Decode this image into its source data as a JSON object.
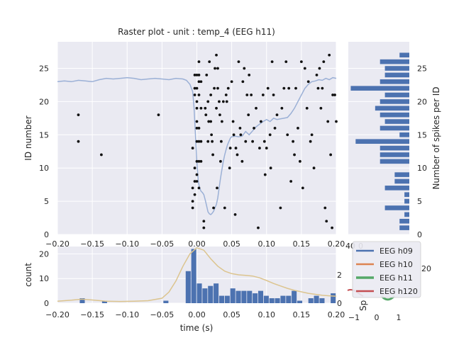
{
  "title": "Raster plot - unit : temp_4 (EEG h11)",
  "colors": {
    "panel_bg": "#eaeaf2",
    "grid": "#ffffff",
    "bar": "#4c72b0",
    "trace": "#9bb0d6",
    "kde": "#dcc48e",
    "dots": "#111111"
  },
  "chart_data": [
    {
      "id": "raster",
      "type": "scatter",
      "title": "Raster plot - unit : temp_4 (EEG h11)",
      "xlabel": "",
      "ylabel": "ID number",
      "xlim": [
        -0.2,
        0.2
      ],
      "ylim": [
        0,
        29
      ],
      "x_ticks": [
        -0.2,
        -0.15,
        -0.1,
        -0.05,
        0.0,
        0.05,
        0.1,
        0.15,
        0.2
      ],
      "x_tick_labels": [
        "−0.20",
        "−0.15",
        "−0.10",
        "−0.05",
        "0.00",
        "0.05",
        "0.10",
        "0.15",
        "0.20"
      ],
      "y_ticks": [
        0,
        5,
        10,
        15,
        20,
        25
      ],
      "grid": true,
      "points": [
        [
          -0.17,
          18
        ],
        [
          -0.17,
          14
        ],
        [
          -0.137,
          12
        ],
        [
          -0.055,
          18
        ],
        [
          -0.006,
          13
        ],
        [
          -0.006,
          7
        ],
        [
          -0.006,
          5
        ],
        [
          -0.006,
          4
        ],
        [
          -0.003,
          24
        ],
        [
          -0.003,
          22
        ],
        [
          -0.003,
          21
        ],
        [
          -0.003,
          10
        ],
        [
          -0.003,
          8
        ],
        [
          -0.003,
          6
        ],
        [
          0.0,
          24
        ],
        [
          0.0,
          22
        ],
        [
          0.0,
          20
        ],
        [
          0.0,
          19
        ],
        [
          0.0,
          17
        ],
        [
          0.0,
          16
        ],
        [
          0.0,
          14
        ],
        [
          0.0,
          11
        ],
        [
          0.0,
          9
        ],
        [
          0.0,
          8
        ],
        [
          0.003,
          26
        ],
        [
          0.003,
          24
        ],
        [
          0.003,
          23
        ],
        [
          0.003,
          21
        ],
        [
          0.003,
          16
        ],
        [
          0.003,
          14
        ],
        [
          0.003,
          11
        ],
        [
          0.003,
          7
        ],
        [
          0.006,
          23
        ],
        [
          0.006,
          19
        ],
        [
          0.006,
          14
        ],
        [
          0.006,
          11
        ],
        [
          0.01,
          2
        ],
        [
          0.01,
          1
        ],
        [
          0.012,
          19
        ],
        [
          0.013,
          18
        ],
        [
          0.014,
          24
        ],
        [
          0.016,
          20
        ],
        [
          0.016,
          14
        ],
        [
          0.017,
          17
        ],
        [
          0.018,
          26
        ],
        [
          0.02,
          21
        ],
        [
          0.02,
          17
        ],
        [
          0.021,
          15
        ],
        [
          0.022,
          14
        ],
        [
          0.023,
          12
        ],
        [
          0.024,
          4
        ],
        [
          0.025,
          22
        ],
        [
          0.026,
          25
        ],
        [
          0.028,
          27
        ],
        [
          0.028,
          19
        ],
        [
          0.029,
          7
        ],
        [
          0.03,
          25
        ],
        [
          0.03,
          22
        ],
        [
          0.032,
          20
        ],
        [
          0.033,
          18
        ],
        [
          0.034,
          11
        ],
        [
          0.035,
          14
        ],
        [
          0.036,
          17
        ],
        [
          0.038,
          20
        ],
        [
          0.04,
          4
        ],
        [
          0.042,
          21
        ],
        [
          0.043,
          20
        ],
        [
          0.045,
          22
        ],
        [
          0.047,
          10
        ],
        [
          0.048,
          13
        ],
        [
          0.05,
          23
        ],
        [
          0.052,
          17
        ],
        [
          0.053,
          15
        ],
        [
          0.055,
          3
        ],
        [
          0.056,
          13
        ],
        [
          0.058,
          12
        ],
        [
          0.06,
          26
        ],
        [
          0.062,
          16
        ],
        [
          0.063,
          15
        ],
        [
          0.065,
          11
        ],
        [
          0.066,
          23
        ],
        [
          0.068,
          25
        ],
        [
          0.07,
          14
        ],
        [
          0.072,
          21
        ],
        [
          0.074,
          18
        ],
        [
          0.075,
          24
        ],
        [
          0.078,
          21
        ],
        [
          0.08,
          14
        ],
        [
          0.082,
          16
        ],
        [
          0.085,
          19
        ],
        [
          0.088,
          1
        ],
        [
          0.09,
          13
        ],
        [
          0.092,
          17
        ],
        [
          0.095,
          21
        ],
        [
          0.097,
          14
        ],
        [
          0.098,
          9
        ],
        [
          0.1,
          13
        ],
        [
          0.102,
          22
        ],
        [
          0.105,
          15
        ],
        [
          0.106,
          10
        ],
        [
          0.108,
          26
        ],
        [
          0.11,
          21
        ],
        [
          0.112,
          16
        ],
        [
          0.115,
          18
        ],
        [
          0.12,
          4
        ],
        [
          0.122,
          19
        ],
        [
          0.125,
          22
        ],
        [
          0.128,
          26
        ],
        [
          0.13,
          15
        ],
        [
          0.132,
          22
        ],
        [
          0.135,
          8
        ],
        [
          0.138,
          14
        ],
        [
          0.14,
          12
        ],
        [
          0.142,
          22
        ],
        [
          0.145,
          16
        ],
        [
          0.148,
          11
        ],
        [
          0.15,
          26
        ],
        [
          0.152,
          7
        ],
        [
          0.155,
          25
        ],
        [
          0.158,
          19
        ],
        [
          0.16,
          23
        ],
        [
          0.163,
          14
        ],
        [
          0.165,
          15
        ],
        [
          0.168,
          10
        ],
        [
          0.172,
          24
        ],
        [
          0.174,
          22
        ],
        [
          0.176,
          25
        ],
        [
          0.178,
          19
        ],
        [
          0.18,
          22
        ],
        [
          0.182,
          26
        ],
        [
          0.184,
          4
        ],
        [
          0.186,
          2
        ],
        [
          0.188,
          17
        ],
        [
          0.19,
          27
        ],
        [
          0.192,
          12
        ],
        [
          0.194,
          1
        ],
        [
          0.195,
          21
        ],
        [
          0.198,
          21
        ],
        [
          0.2,
          17
        ]
      ],
      "trace": [
        [
          -0.2,
          23.0
        ],
        [
          -0.19,
          23.1
        ],
        [
          -0.18,
          23.0
        ],
        [
          -0.17,
          23.2
        ],
        [
          -0.16,
          23.1
        ],
        [
          -0.15,
          23.0
        ],
        [
          -0.14,
          23.3
        ],
        [
          -0.13,
          23.5
        ],
        [
          -0.12,
          23.4
        ],
        [
          -0.11,
          23.5
        ],
        [
          -0.1,
          23.6
        ],
        [
          -0.09,
          23.5
        ],
        [
          -0.08,
          23.3
        ],
        [
          -0.07,
          23.4
        ],
        [
          -0.06,
          23.5
        ],
        [
          -0.05,
          23.4
        ],
        [
          -0.04,
          23.3
        ],
        [
          -0.03,
          23.5
        ],
        [
          -0.02,
          23.4
        ],
        [
          -0.015,
          23.2
        ],
        [
          -0.01,
          22.6
        ],
        [
          -0.006,
          21.5
        ],
        [
          -0.004,
          19.0
        ],
        [
          -0.002,
          15.0
        ],
        [
          0.0,
          11.0
        ],
        [
          0.002,
          8.0
        ],
        [
          0.004,
          7.0
        ],
        [
          0.006,
          6.5
        ],
        [
          0.008,
          6.3
        ],
        [
          0.01,
          6.0
        ],
        [
          0.012,
          5.2
        ],
        [
          0.014,
          4.3
        ],
        [
          0.016,
          3.4
        ],
        [
          0.018,
          3.1
        ],
        [
          0.02,
          3.0
        ],
        [
          0.022,
          3.2
        ],
        [
          0.024,
          3.5
        ],
        [
          0.026,
          4.0
        ],
        [
          0.028,
          4.5
        ],
        [
          0.03,
          5.5
        ],
        [
          0.032,
          7.0
        ],
        [
          0.034,
          8.5
        ],
        [
          0.036,
          9.8
        ],
        [
          0.038,
          11.0
        ],
        [
          0.04,
          12.0
        ],
        [
          0.042,
          12.8
        ],
        [
          0.044,
          13.5
        ],
        [
          0.046,
          14.0
        ],
        [
          0.048,
          14.5
        ],
        [
          0.05,
          14.7
        ],
        [
          0.055,
          14.8
        ],
        [
          0.06,
          14.7
        ],
        [
          0.065,
          14.8
        ],
        [
          0.07,
          15.5
        ],
        [
          0.075,
          15.0
        ],
        [
          0.08,
          15.6
        ],
        [
          0.085,
          16.2
        ],
        [
          0.09,
          16.6
        ],
        [
          0.095,
          17.0
        ],
        [
          0.1,
          17.3
        ],
        [
          0.105,
          17.0
        ],
        [
          0.11,
          17.5
        ],
        [
          0.115,
          17.3
        ],
        [
          0.12,
          17.4
        ],
        [
          0.125,
          17.5
        ],
        [
          0.13,
          17.6
        ],
        [
          0.135,
          18.2
        ],
        [
          0.14,
          19.0
        ],
        [
          0.145,
          20.0
        ],
        [
          0.15,
          21.0
        ],
        [
          0.155,
          22.0
        ],
        [
          0.16,
          22.6
        ],
        [
          0.165,
          23.0
        ],
        [
          0.17,
          23.1
        ],
        [
          0.175,
          23.3
        ],
        [
          0.18,
          23.2
        ],
        [
          0.185,
          23.5
        ],
        [
          0.19,
          23.3
        ],
        [
          0.195,
          23.6
        ],
        [
          0.2,
          23.5
        ]
      ]
    },
    {
      "id": "spikes-per-id",
      "type": "bar",
      "orientation": "horizontal",
      "ylabel": "Number of spikes per ID",
      "y_ticks": [
        0,
        5,
        10,
        15,
        20,
        25
      ],
      "ylim": [
        0,
        29
      ],
      "ids": [
        1,
        2,
        3,
        4,
        5,
        6,
        7,
        8,
        9,
        10,
        11,
        12,
        13,
        14,
        15,
        16,
        17,
        18,
        19,
        20,
        21,
        22,
        23,
        24,
        25,
        26,
        27
      ],
      "counts": [
        2,
        2,
        1,
        5,
        1,
        1,
        5,
        3,
        3,
        0,
        6,
        6,
        6,
        11,
        2,
        6,
        5,
        6,
        7,
        6,
        5,
        12,
        6,
        5,
        5,
        6,
        2
      ],
      "xlim": [
        0,
        12.5
      ]
    },
    {
      "id": "psth",
      "type": "bar",
      "xlabel": "time (s)",
      "ylabel": "count",
      "xlim": [
        -0.2,
        0.2
      ],
      "ylim": [
        0,
        23
      ],
      "x_ticks": [
        -0.2,
        -0.15,
        -0.1,
        -0.05,
        0.0,
        0.05,
        0.1,
        0.15,
        0.2
      ],
      "x_tick_labels": [
        "−0.20",
        "−0.15",
        "−0.10",
        "−0.05",
        "0.00",
        "0.05",
        "0.10",
        "0.15",
        "0.20"
      ],
      "y_ticks": [
        0,
        10,
        20
      ],
      "bin_width": 0.008,
      "bins": [
        [
          -0.168,
          2
        ],
        [
          -0.136,
          1
        ],
        [
          -0.048,
          1
        ],
        [
          -0.016,
          13
        ],
        [
          -0.008,
          22
        ],
        [
          0.0,
          8
        ],
        [
          0.008,
          6
        ],
        [
          0.016,
          7
        ],
        [
          0.024,
          8
        ],
        [
          0.032,
          3
        ],
        [
          0.04,
          3
        ],
        [
          0.048,
          6
        ],
        [
          0.056,
          5
        ],
        [
          0.064,
          5
        ],
        [
          0.072,
          5
        ],
        [
          0.08,
          4
        ],
        [
          0.088,
          5
        ],
        [
          0.096,
          3
        ],
        [
          0.104,
          2
        ],
        [
          0.112,
          2
        ],
        [
          0.12,
          3
        ],
        [
          0.128,
          3
        ],
        [
          0.136,
          5
        ],
        [
          0.144,
          1
        ],
        [
          0.16,
          2
        ],
        [
          0.168,
          3
        ],
        [
          0.176,
          2
        ],
        [
          0.192,
          4
        ]
      ],
      "kde": [
        [
          -0.2,
          0.8
        ],
        [
          -0.18,
          1.2
        ],
        [
          -0.165,
          1.6
        ],
        [
          -0.15,
          1.3
        ],
        [
          -0.13,
          0.8
        ],
        [
          -0.11,
          0.7
        ],
        [
          -0.09,
          0.8
        ],
        [
          -0.07,
          1.0
        ],
        [
          -0.05,
          2.0
        ],
        [
          -0.04,
          4.5
        ],
        [
          -0.03,
          9.0
        ],
        [
          -0.02,
          15.0
        ],
        [
          -0.01,
          20.0
        ],
        [
          0.0,
          22.5
        ],
        [
          0.01,
          21.5
        ],
        [
          0.02,
          18.0
        ],
        [
          0.03,
          15.0
        ],
        [
          0.04,
          13.0
        ],
        [
          0.05,
          12.0
        ],
        [
          0.06,
          11.5
        ],
        [
          0.07,
          11.3
        ],
        [
          0.08,
          11.0
        ],
        [
          0.09,
          10.3
        ],
        [
          0.1,
          9.2
        ],
        [
          0.11,
          8.0
        ],
        [
          0.12,
          7.0
        ],
        [
          0.13,
          6.0
        ],
        [
          0.14,
          5.2
        ],
        [
          0.15,
          4.6
        ],
        [
          0.16,
          4.0
        ],
        [
          0.17,
          3.6
        ],
        [
          0.18,
          3.2
        ],
        [
          0.19,
          3.0
        ],
        [
          0.2,
          2.8
        ]
      ]
    }
  ],
  "partial": {
    "right_ticks_top": [
      "20"
    ],
    "right_ticks_bottom": [
      "2",
      "0"
    ],
    "right_label_fragment": "Sp",
    "corner_ticks": [
      "40",
      "0"
    ],
    "spectrum_ticks": [
      "−1",
      "0",
      "1"
    ]
  },
  "legend": {
    "placement": "bottom-right",
    "items": [
      {
        "label": "EEG h09",
        "color": "#4c72b0"
      },
      {
        "label": "EEG h10",
        "color": "#dd8452"
      },
      {
        "label": "EEG h11",
        "color": "#55a868"
      },
      {
        "label": "EEG h120",
        "color": "#c44e52"
      }
    ]
  }
}
